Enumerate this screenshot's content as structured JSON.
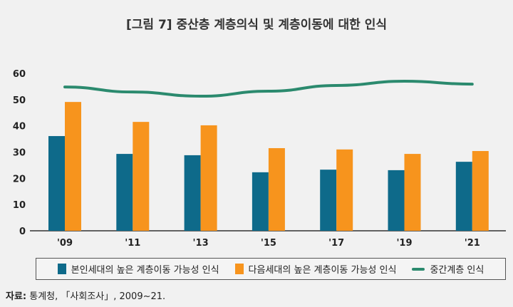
{
  "chart_data": {
    "type": "bar",
    "title": "[그림 7] 중산층 계층의식 및 계층이동에 대한 인식",
    "categories": [
      "'09",
      "'11",
      "'13",
      "'15",
      "'17",
      "'19",
      "'21"
    ],
    "ylim": [
      0,
      60
    ],
    "yticks": [
      0,
      10,
      20,
      30,
      40,
      50,
      60
    ],
    "grid": false,
    "legend_position": "bottom",
    "series": [
      {
        "name": "본인세대의 높은 계층이동 가능성 인식",
        "kind": "bar",
        "color": "#0e6a8a",
        "values": [
          36.1,
          29.3,
          28.8,
          22.3,
          23.3,
          23.1,
          26.3
        ]
      },
      {
        "name": "다음세대의 높은 계층이동 가능성 인식",
        "kind": "bar",
        "color": "#f7941d",
        "values": [
          49.1,
          41.5,
          40.2,
          31.5,
          31.0,
          29.3,
          30.4
        ]
      },
      {
        "name": "중간계층 인식",
        "kind": "line",
        "color": "#2b8a6e",
        "values": [
          54.8,
          52.9,
          51.3,
          53.2,
          55.4,
          57.0,
          55.9
        ]
      }
    ]
  },
  "source": {
    "label": "자료:",
    "text": " 통계청, 「사회조사」, 2009~21."
  }
}
